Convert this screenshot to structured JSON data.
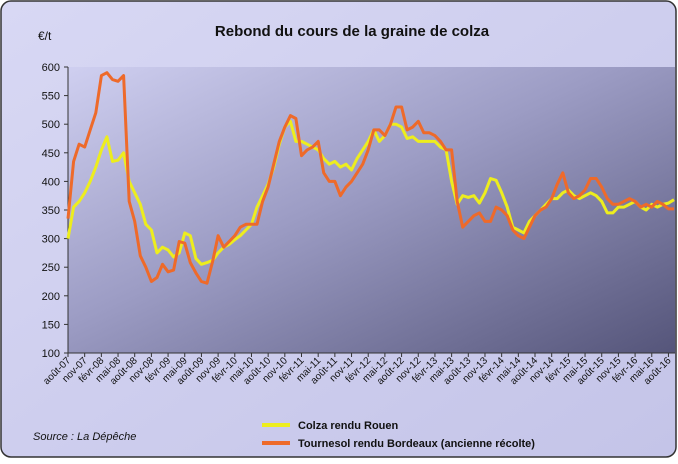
{
  "chart_data": {
    "type": "line",
    "title": "Rebond du cours de la graine de colza",
    "y_label": "€/t",
    "source": "Source : La Dépêche",
    "categories": [
      "août-07",
      null,
      null,
      "nov-07",
      null,
      null,
      "févr-08",
      null,
      null,
      "mai-08",
      null,
      null,
      "août-08",
      null,
      null,
      "nov-08",
      null,
      null,
      "févr-09",
      null,
      null,
      "mai-09",
      null,
      null,
      "août-09",
      null,
      null,
      "nov-09",
      null,
      null,
      "févr-10",
      null,
      null,
      "mai-10",
      null,
      null,
      "août-10",
      null,
      null,
      "nov-10",
      null,
      null,
      "févr-11",
      null,
      null,
      "mai-11",
      null,
      null,
      "août-11",
      null,
      null,
      "nov-11",
      null,
      null,
      "févr-12",
      null,
      null,
      "mai-12",
      null,
      null,
      "août-12",
      null,
      null,
      "nov-12",
      null,
      null,
      "févr-13",
      null,
      null,
      "mai-13",
      null,
      null,
      "août-13",
      null,
      null,
      "nov-13",
      null,
      null,
      "févr-14",
      null,
      null,
      "mai-14",
      null,
      null,
      "août-14",
      null,
      null,
      "nov-14",
      null,
      null,
      "févr-15",
      null,
      null,
      "mai-15",
      null,
      null,
      "août-15",
      null,
      null,
      "nov-15",
      null,
      null,
      "févr-16",
      null,
      null,
      "mai-16",
      null,
      null,
      "août-16",
      null
    ],
    "series": [
      {
        "name": "Colza rendu Rouen",
        "color": "#eded1e",
        "values": [
          300,
          355,
          365,
          380,
          400,
          425,
          455,
          478,
          435,
          437,
          450,
          400,
          380,
          360,
          325,
          315,
          275,
          285,
          280,
          268,
          275,
          310,
          305,
          265,
          255,
          258,
          262,
          275,
          285,
          290,
          298,
          305,
          315,
          325,
          355,
          375,
          395,
          425,
          465,
          495,
          505,
          470,
          470,
          465,
          460,
          455,
          440,
          430,
          435,
          425,
          430,
          420,
          440,
          455,
          470,
          490,
          470,
          480,
          500,
          500,
          495,
          475,
          478,
          470,
          470,
          470,
          470,
          460,
          455,
          400,
          360,
          375,
          372,
          375,
          362,
          380,
          405,
          402,
          380,
          355,
          320,
          315,
          310,
          330,
          340,
          350,
          360,
          370,
          370,
          380,
          385,
          375,
          370,
          375,
          380,
          375,
          365,
          345,
          345,
          355,
          355,
          360,
          365,
          355,
          350,
          360,
          355,
          360,
          362,
          368
        ]
      },
      {
        "name": "Tournesol rendu Bordeaux (ancienne récolte)",
        "color": "#ee6a2a",
        "values": [
          335,
          435,
          465,
          460,
          490,
          520,
          585,
          590,
          578,
          575,
          585,
          365,
          330,
          270,
          250,
          225,
          232,
          255,
          242,
          245,
          295,
          292,
          258,
          240,
          225,
          222,
          260,
          305,
          285,
          295,
          305,
          320,
          325,
          325,
          325,
          365,
          390,
          430,
          470,
          495,
          515,
          510,
          445,
          455,
          460,
          470,
          415,
          400,
          400,
          375,
          390,
          400,
          415,
          430,
          455,
          490,
          490,
          480,
          500,
          530,
          530,
          490,
          495,
          505,
          485,
          485,
          480,
          470,
          455,
          455,
          365,
          320,
          330,
          340,
          345,
          330,
          330,
          355,
          350,
          340,
          315,
          305,
          300,
          320,
          340,
          350,
          355,
          370,
          395,
          415,
          380,
          370,
          375,
          385,
          405,
          405,
          390,
          370,
          360,
          360,
          365,
          370,
          365,
          355,
          360,
          355,
          365,
          360,
          352,
          352
        ]
      }
    ],
    "ylim": [
      100,
      600
    ],
    "yticks": [
      100,
      150,
      200,
      250,
      300,
      350,
      400,
      450,
      500,
      550,
      600
    ]
  }
}
